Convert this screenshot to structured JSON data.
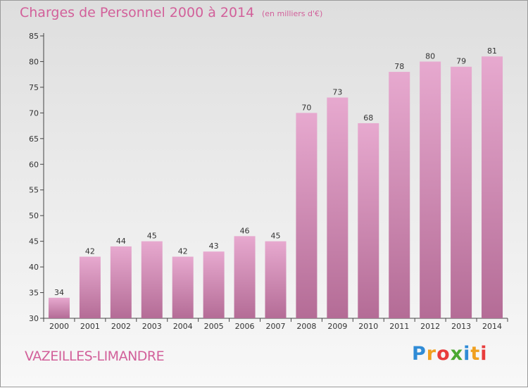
{
  "header": {
    "title": "Charges de Personnel 2000 à 2014",
    "subtitle": "(en milliers d'€)"
  },
  "footer": {
    "place": "VAZEILLES-LIMANDRE",
    "logo": "Proxiti"
  },
  "colors": {
    "title": "#d2609a",
    "bar_top": "#e7a9cf",
    "bar_bottom": "#b46c96",
    "axis": "#444444"
  },
  "chart_data": {
    "type": "bar",
    "title": "Charges de Personnel 2000 à 2014",
    "subtitle": "(en milliers d'€)",
    "categories": [
      "2000",
      "2001",
      "2002",
      "2003",
      "2004",
      "2005",
      "2006",
      "2007",
      "2008",
      "2009",
      "2010",
      "2011",
      "2012",
      "2013",
      "2014"
    ],
    "values": [
      34,
      42,
      44,
      45,
      42,
      43,
      46,
      45,
      70,
      73,
      68,
      78,
      80,
      79,
      81
    ],
    "ylim": [
      30,
      85
    ],
    "yticks": [
      30,
      35,
      40,
      45,
      50,
      55,
      60,
      65,
      70,
      75,
      80,
      85
    ],
    "grid": false,
    "data_labels": true
  }
}
